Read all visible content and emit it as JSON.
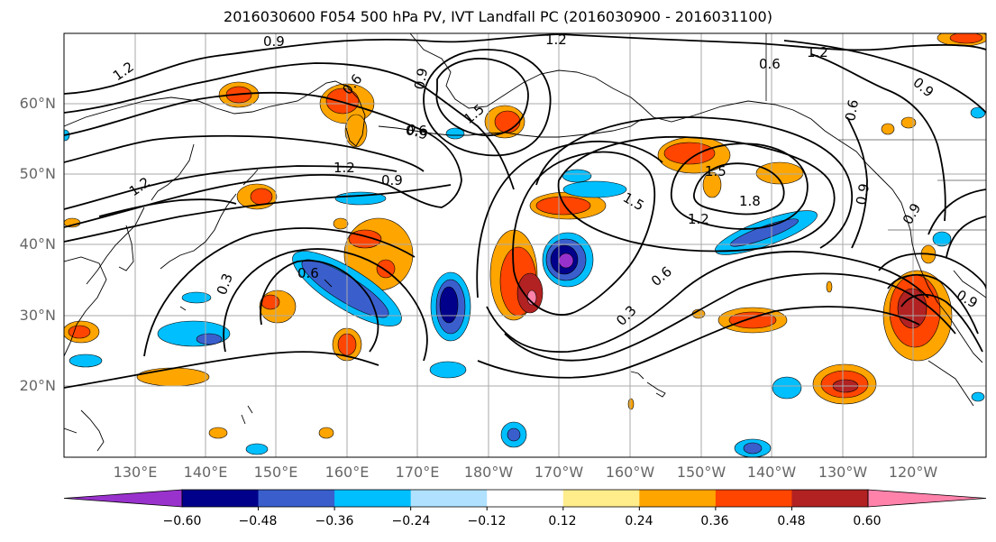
{
  "title": "2016030600 F054 500 hPa PV, IVT Landfall PC (2016030900 - 2016031100)",
  "lat_labels": [
    "60°N",
    "50°N",
    "40°N",
    "30°N",
    "20°N"
  ],
  "lon_labels": [
    "130°E",
    "140°E",
    "150°E",
    "160°E",
    "170°E",
    "180°W",
    "170°W",
    "160°W",
    "150°W",
    "140°W",
    "130°W",
    "120°W"
  ],
  "contour_labels": [
    "0.9",
    "1.2",
    "0.6",
    "0.9",
    "1.2",
    "0.6",
    "0.9",
    "1.5",
    "1.2",
    "0.9",
    "0.6",
    "1.5",
    "1.8",
    "1.2",
    "1.5",
    "0.6",
    "0.3",
    "0.6",
    "0.3",
    "0.9",
    "0.6",
    "0.9",
    "1.2",
    "0.9",
    "1.2",
    "0.9"
  ],
  "colorbar": {
    "ticks": [
      "−0.60",
      "−0.48",
      "−0.36",
      "−0.24",
      "−0.12",
      "0.12",
      "0.24",
      "0.36",
      "0.48",
      "0.60"
    ],
    "colors": [
      "#9932cc",
      "#00008b",
      "#3a5fcd",
      "#00bfff",
      "#b0e2ff",
      "#ffffff",
      "#ffec8b",
      "#ffa500",
      "#ff4500",
      "#b22222",
      "#ff82ab"
    ]
  }
}
